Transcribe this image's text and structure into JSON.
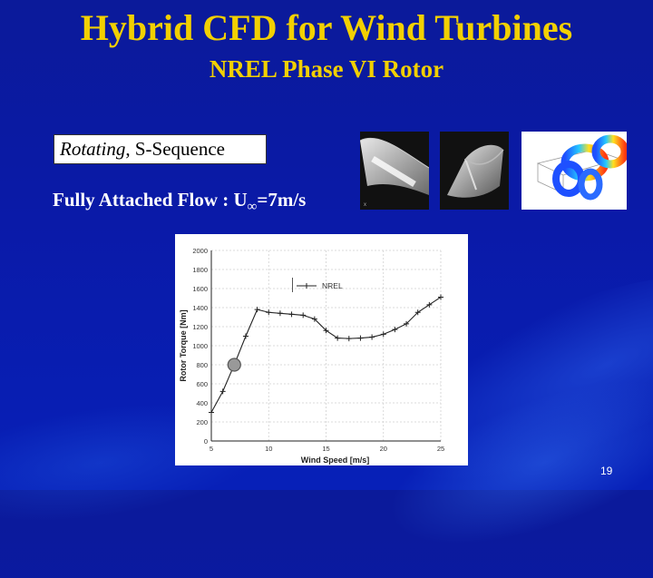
{
  "slide": {
    "title": "Hybrid CFD for Wind Turbines",
    "subtitle": "NREL Phase VI Rotor",
    "tag": {
      "italic": "Rotating",
      "rest": ", S-Sequence"
    },
    "flow_label": {
      "main": "Fully Attached Flow :  U",
      "subscript": "∞",
      "value": "=7m/s"
    },
    "page_number": "19"
  },
  "chart_data": {
    "type": "line",
    "xlabel": "Wind Speed [m/s]",
    "ylabel": "Rotor Torque [Nm]",
    "xlim": [
      5,
      25
    ],
    "ylim": [
      0,
      2000
    ],
    "x_ticks": [
      "5",
      "10",
      "15",
      "20",
      "25"
    ],
    "y_ticks": [
      "0",
      "200",
      "400",
      "600",
      "800",
      "1000",
      "1200",
      "1400",
      "1600",
      "1800",
      "2000"
    ],
    "grid": true,
    "legend": "top-center",
    "series": [
      {
        "name": "NREL",
        "x": [
          5,
          6,
          7,
          8,
          9,
          10,
          11,
          12,
          13,
          14,
          15,
          16,
          17,
          18,
          19,
          20,
          21,
          22,
          23,
          24,
          25
        ],
        "y": [
          300,
          520,
          800,
          1100,
          1380,
          1350,
          1340,
          1330,
          1320,
          1280,
          1160,
          1080,
          1075,
          1080,
          1090,
          1120,
          1170,
          1230,
          1350,
          1430,
          1510
        ]
      }
    ],
    "highlight": {
      "x": 7,
      "y": 800
    }
  }
}
